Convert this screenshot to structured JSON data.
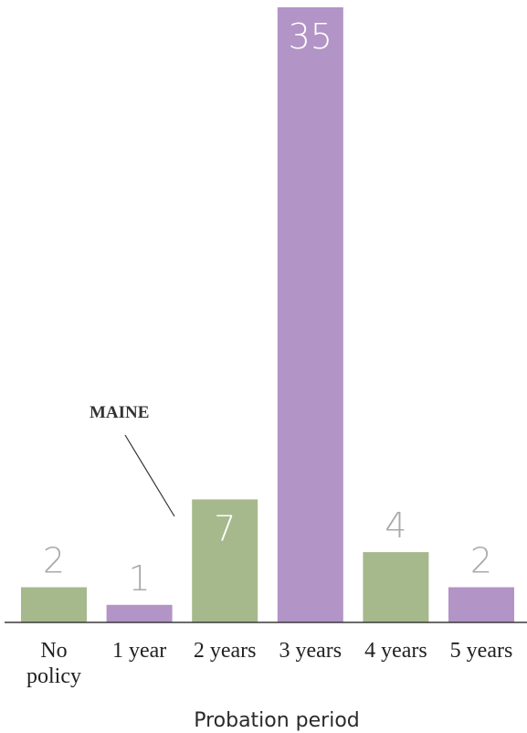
{
  "chart_data": {
    "type": "bar",
    "categories": [
      [
        "No",
        "policy"
      ],
      [
        "1 year"
      ],
      [
        "2 years"
      ],
      [
        "3 years"
      ],
      [
        "4 years"
      ],
      [
        "5 years"
      ]
    ],
    "values": [
      2,
      1,
      7,
      35,
      4,
      2
    ],
    "bar_colors": [
      "#a6b98c",
      "#b294c6",
      "#a6b98c",
      "#b294c6",
      "#a6b98c",
      "#b294c6"
    ],
    "value_label_color_outside": "#a9a9a9",
    "value_label_color_inside": "#ffffff",
    "xlabel": "Probation period",
    "ylabel": "",
    "ylim": [
      0,
      35
    ],
    "grid": false,
    "annotation": {
      "text": "MAINE",
      "category_index": 1
    }
  }
}
